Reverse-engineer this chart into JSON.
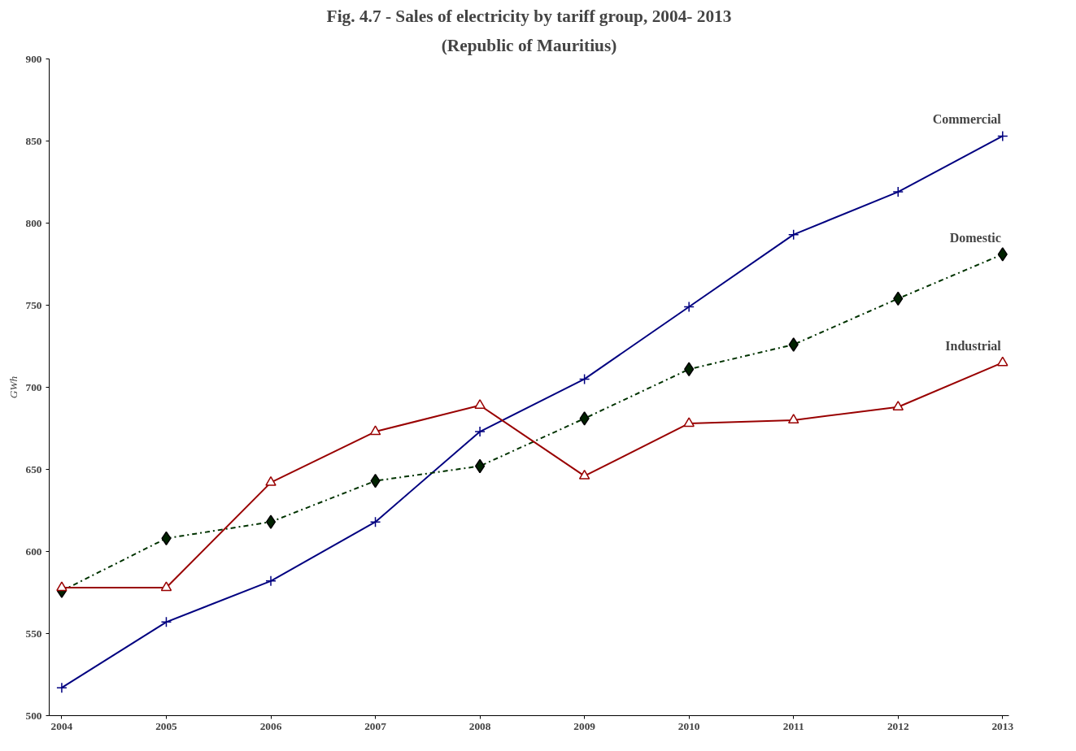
{
  "chart_data": {
    "type": "line",
    "title": "Fig. 4.7 - Sales of electricity by tariff group, 2004- 2013",
    "subtitle": "(Republic of Mauritius)",
    "ylabel": "GWh",
    "categories": [
      "2004",
      "2005",
      "2006",
      "2007",
      "2008",
      "2009",
      "2010",
      "2011",
      "2012",
      "2013"
    ],
    "ylim": [
      500,
      900
    ],
    "yticks": [
      500,
      550,
      600,
      650,
      700,
      750,
      800,
      850,
      900
    ],
    "grid": false,
    "legend": false,
    "series": [
      {
        "name": "Commercial",
        "color": "#000080",
        "marker": "cross",
        "line_style": "solid",
        "values": [
          517,
          557,
          582,
          618,
          673,
          705,
          749,
          793,
          819,
          853
        ]
      },
      {
        "name": "Domestic",
        "color": "#003300",
        "marker": "diamond",
        "line_style": "dashdot",
        "values": [
          576,
          608,
          618,
          643,
          652,
          681,
          711,
          726,
          754,
          781
        ]
      },
      {
        "name": "Industrial",
        "color": "#990000",
        "marker": "triangle",
        "line_style": "solid",
        "values": [
          578,
          578,
          642,
          673,
          689,
          646,
          678,
          680,
          688,
          715
        ]
      }
    ]
  }
}
